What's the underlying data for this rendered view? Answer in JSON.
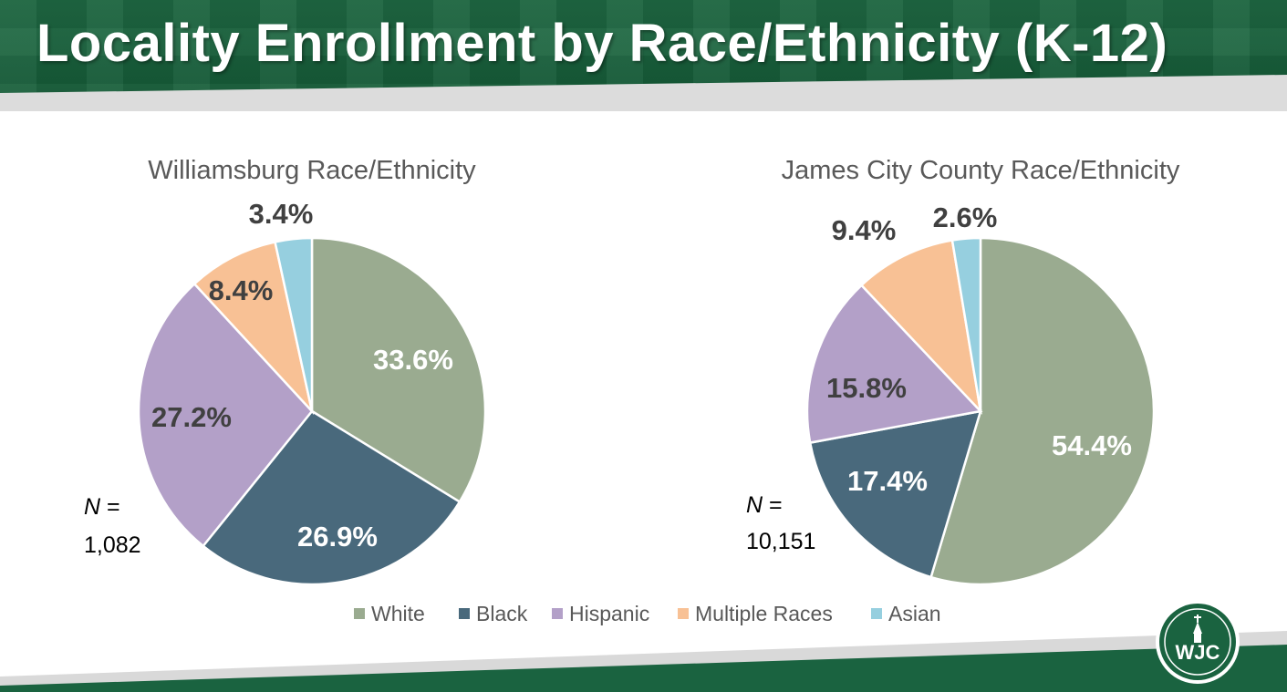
{
  "slide": {
    "title": "Locality Enrollment by Race/Ethnicity (K-12)"
  },
  "colors": {
    "header_green": "#1a6340",
    "White": "#9aab90",
    "Black": "#49697c",
    "Hispanic": "#b3a0c8",
    "Multiple Races": "#f8c195",
    "Asian": "#96cfdf"
  },
  "logo": {
    "text": "WJC",
    "icon": "church-steeple-icon"
  },
  "chart_data": [
    {
      "type": "pie",
      "title": "Williamsburg Race/Ethnicity",
      "categories": [
        "White",
        "Black",
        "Hispanic",
        "Multiple Races",
        "Asian"
      ],
      "values": [
        33.6,
        26.9,
        27.2,
        8.4,
        3.4
      ],
      "labels": [
        "33.6%",
        "26.9%",
        "27.2%",
        "8.4%",
        "3.4%"
      ],
      "n_label": "N =",
      "n_value": "1,082",
      "legend": "bottom"
    },
    {
      "type": "pie",
      "title": "James City County Race/Ethnicity",
      "categories": [
        "White",
        "Black",
        "Hispanic",
        "Multiple Races",
        "Asian"
      ],
      "values": [
        54.4,
        17.4,
        15.8,
        9.4,
        2.6
      ],
      "labels": [
        "54.4%",
        "17.4%",
        "15.8%",
        "9.4%",
        "2.6%"
      ],
      "n_label": "N =",
      "n_value": "10,151",
      "legend": "bottom"
    }
  ],
  "legend": {
    "items": [
      "White",
      "Black",
      "Hispanic",
      "Multiple Races",
      "Asian"
    ]
  }
}
